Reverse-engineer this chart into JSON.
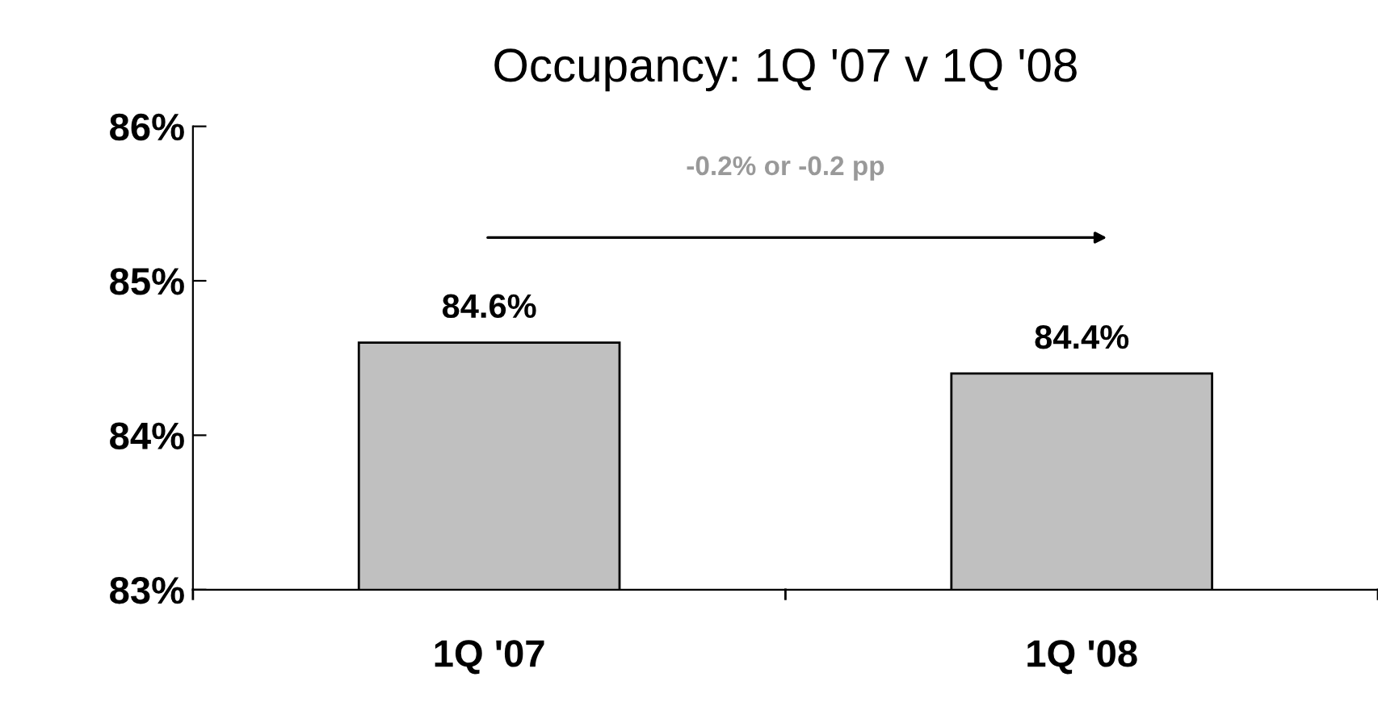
{
  "chart_data": {
    "type": "bar",
    "title": "Occupancy: 1Q '07 v 1Q '08",
    "categories": [
      "1Q '07",
      "1Q '08"
    ],
    "series": [
      {
        "color": "#c0c0c0",
        "values": [
          84.6,
          84.4
        ],
        "value_labels": [
          "84.6%",
          "84.4%"
        ]
      }
    ],
    "ylim": [
      83,
      86
    ],
    "yticks": [
      {
        "value": 83,
        "label": "83%"
      },
      {
        "value": 84,
        "label": "84%"
      },
      {
        "value": 85,
        "label": "85%"
      },
      {
        "value": 86,
        "label": "86%"
      }
    ],
    "annotations": [
      "-0.2% or -0.2 pp"
    ],
    "grid": false,
    "legend": false
  }
}
